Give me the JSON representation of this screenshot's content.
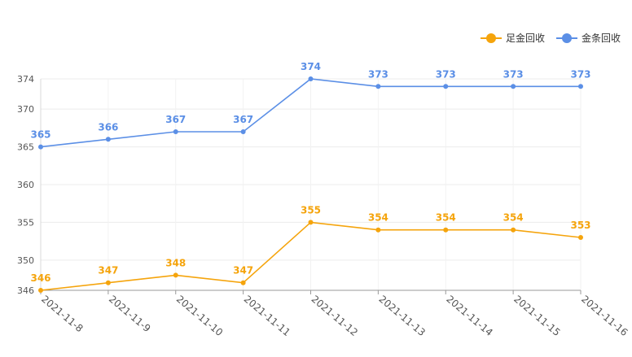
{
  "chart_data": {
    "type": "line",
    "categories": [
      "2021-11-8",
      "2021-11-9",
      "2021-11-10",
      "2021-11-11",
      "2021-11-12",
      "2021-11-13",
      "2021-11-14",
      "2021-11-15",
      "2021-11-16"
    ],
    "series": [
      {
        "name": "足金回收",
        "color": "#f5a40c",
        "values": [
          346,
          347,
          348,
          347,
          355,
          354,
          354,
          354,
          353
        ]
      },
      {
        "name": "金条回收",
        "color": "#5b8fe6",
        "values": [
          365,
          366,
          367,
          367,
          374,
          373,
          373,
          373,
          373
        ]
      }
    ],
    "yticks": [
      346,
      350,
      355,
      360,
      365,
      370,
      374
    ],
    "ylim": [
      346,
      374
    ],
    "grid": true,
    "legend": "top-right",
    "title": "",
    "xlabel": "",
    "ylabel": ""
  }
}
